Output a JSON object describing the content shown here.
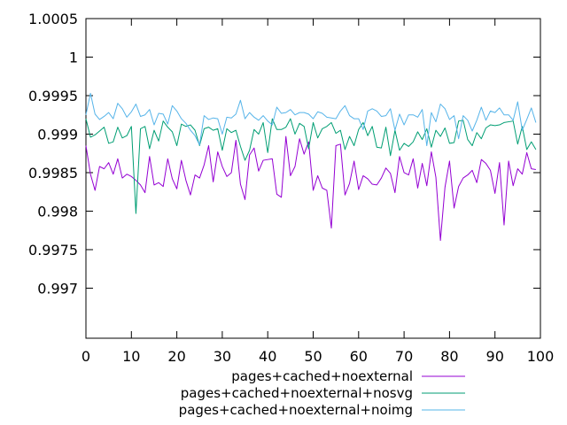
{
  "chart_data": {
    "type": "line",
    "title": "",
    "xlabel": "",
    "ylabel": "",
    "xlim": [
      0,
      100
    ],
    "ylim": [
      0.99635,
      1.0005
    ],
    "x_ticks": [
      0,
      10,
      20,
      30,
      40,
      50,
      60,
      70,
      80,
      90,
      100
    ],
    "x_tick_labels": [
      "0",
      "10",
      "20",
      "30",
      "40",
      "50",
      "60",
      "70",
      "80",
      "90",
      "100"
    ],
    "y_ticks": [
      0.997,
      0.9975,
      0.998,
      0.9985,
      0.999,
      0.9995,
      1.0,
      1.0005
    ],
    "y_tick_labels": [
      "0.997",
      "0.9975",
      "0.998",
      "0.9985",
      "0.999",
      "0.9995",
      "1",
      "1.0005"
    ],
    "grid": false,
    "legend_position": "bottom",
    "x": [
      0,
      1,
      2,
      3,
      4,
      5,
      6,
      7,
      8,
      9,
      10,
      11,
      12,
      13,
      14,
      15,
      16,
      17,
      18,
      19,
      20,
      21,
      22,
      23,
      24,
      25,
      26,
      27,
      28,
      29,
      30,
      31,
      32,
      33,
      34,
      35,
      36,
      37,
      38,
      39,
      40,
      41,
      42,
      43,
      44,
      45,
      46,
      47,
      48,
      49,
      50,
      51,
      52,
      53,
      54,
      55,
      56,
      57,
      58,
      59,
      60,
      61,
      62,
      63,
      64,
      65,
      66,
      67,
      68,
      69,
      70,
      71,
      72,
      73,
      74,
      75,
      76,
      77,
      78,
      79,
      80,
      81,
      82,
      83,
      84,
      85,
      86,
      87,
      88,
      89,
      90,
      91,
      92,
      93,
      94,
      95,
      96,
      97,
      98,
      99
    ],
    "series": [
      {
        "name": "pages+cached+noexternal",
        "color": "#9400d3",
        "values": [
          0.99885,
          0.99848,
          0.99827,
          0.99858,
          0.99855,
          0.99863,
          0.99848,
          0.99868,
          0.99843,
          0.99848,
          0.99845,
          0.9984,
          0.99834,
          0.99824,
          0.99871,
          0.99834,
          0.99837,
          0.99832,
          0.99868,
          0.99842,
          0.99829,
          0.99866,
          0.9984,
          0.99821,
          0.99847,
          0.99843,
          0.9986,
          0.99885,
          0.99838,
          0.99877,
          0.99858,
          0.99845,
          0.9985,
          0.99892,
          0.99835,
          0.99815,
          0.99873,
          0.99882,
          0.99852,
          0.99866,
          0.99867,
          0.99868,
          0.99822,
          0.99818,
          0.99897,
          0.99846,
          0.99858,
          0.99894,
          0.99874,
          0.9989,
          0.99827,
          0.99846,
          0.9983,
          0.99827,
          0.99778,
          0.99885,
          0.99887,
          0.99821,
          0.99836,
          0.99865,
          0.99828,
          0.99846,
          0.99842,
          0.99835,
          0.99834,
          0.99843,
          0.99856,
          0.99849,
          0.99824,
          0.99871,
          0.9985,
          0.99847,
          0.99868,
          0.9983,
          0.99862,
          0.99833,
          0.99877,
          0.99844,
          0.99762,
          0.99831,
          0.99865,
          0.99804,
          0.99832,
          0.99843,
          0.99847,
          0.99853,
          0.99837,
          0.99867,
          0.99862,
          0.99853,
          0.99823,
          0.99863,
          0.99782,
          0.99865,
          0.99833,
          0.99855,
          0.99848,
          0.99876,
          0.99855,
          0.99854
        ]
      },
      {
        "name": "pages+cached+noexternal+nosvg",
        "color": "#009e73",
        "values": [
          0.9992,
          0.99896,
          0.99899,
          0.99904,
          0.99909,
          0.99888,
          0.9989,
          0.99909,
          0.99895,
          0.99898,
          0.9991,
          0.99797,
          0.99907,
          0.9991,
          0.99881,
          0.99905,
          0.99891,
          0.99917,
          0.99909,
          0.99903,
          0.99885,
          0.99913,
          0.9991,
          0.99912,
          0.99905,
          0.99885,
          0.99907,
          0.99909,
          0.99905,
          0.99907,
          0.99879,
          0.99907,
          0.99902,
          0.99905,
          0.99884,
          0.99866,
          0.99879,
          0.99906,
          0.999,
          0.99915,
          0.99876,
          0.9992,
          0.99906,
          0.99906,
          0.99909,
          0.9992,
          0.999,
          0.99914,
          0.9991,
          0.99881,
          0.99915,
          0.99895,
          0.99907,
          0.9991,
          0.99915,
          0.99901,
          0.99905,
          0.9988,
          0.99897,
          0.99885,
          0.99906,
          0.99915,
          0.99898,
          0.9991,
          0.99883,
          0.99882,
          0.99909,
          0.99872,
          0.99905,
          0.99879,
          0.99888,
          0.99884,
          0.9989,
          0.99903,
          0.99893,
          0.99907,
          0.99883,
          0.99905,
          0.99897,
          0.99908,
          0.99888,
          0.99889,
          0.99917,
          0.99918,
          0.99893,
          0.99885,
          0.99902,
          0.99894,
          0.99908,
          0.99912,
          0.99911,
          0.99912,
          0.99915,
          0.99916,
          0.99917,
          0.99887,
          0.9991,
          0.9988,
          0.9989,
          0.9988
        ]
      },
      {
        "name": "pages+cached+noexternal+noimg",
        "color": "#56b4e9",
        "values": [
          0.99925,
          0.99953,
          0.99926,
          0.99919,
          0.99923,
          0.99928,
          0.9992,
          0.9994,
          0.99933,
          0.99922,
          0.99929,
          0.99939,
          0.99923,
          0.99925,
          0.99932,
          0.99912,
          0.99927,
          0.99926,
          0.99913,
          0.99937,
          0.9993,
          0.9992,
          0.99914,
          0.99905,
          0.99898,
          0.99886,
          0.99924,
          0.99919,
          0.99921,
          0.9992,
          0.999,
          0.99922,
          0.99921,
          0.99926,
          0.99944,
          0.9992,
          0.99928,
          0.99922,
          0.99918,
          0.99924,
          0.99917,
          0.99912,
          0.99935,
          0.99927,
          0.99928,
          0.99932,
          0.99925,
          0.99928,
          0.99928,
          0.99926,
          0.9992,
          0.99929,
          0.99927,
          0.99922,
          0.99921,
          0.9992,
          0.9993,
          0.99937,
          0.99924,
          0.9992,
          0.9992,
          0.99906,
          0.9993,
          0.99933,
          0.9993,
          0.99923,
          0.99924,
          0.99933,
          0.99905,
          0.99926,
          0.99912,
          0.99925,
          0.99925,
          0.99922,
          0.99932,
          0.99885,
          0.99928,
          0.99916,
          0.99939,
          0.99933,
          0.99919,
          0.99924,
          0.99894,
          0.99924,
          0.99918,
          0.99904,
          0.99918,
          0.99935,
          0.99918,
          0.9993,
          0.99928,
          0.99934,
          0.99925,
          0.99925,
          0.99918,
          0.99942,
          0.99905,
          0.99919,
          0.99934,
          0.99915
        ]
      }
    ]
  }
}
